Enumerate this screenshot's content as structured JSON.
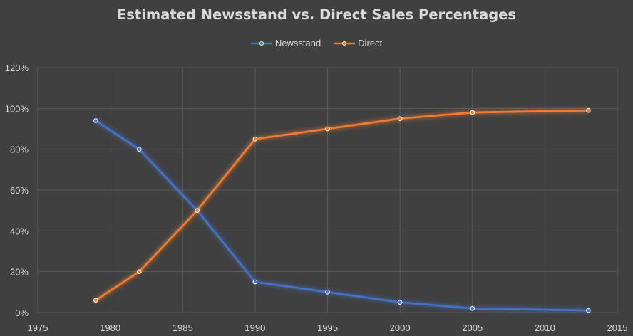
{
  "chart_data": {
    "type": "line",
    "title": "Estimated Newsstand vs. Direct Sales Percentages",
    "xlabel": "",
    "ylabel": "",
    "xlim": [
      1975,
      2015
    ],
    "xticks": [
      1975,
      1980,
      1985,
      1990,
      1995,
      2000,
      2005,
      2010,
      2015
    ],
    "ylim": [
      0,
      1.2
    ],
    "yticks": [
      0,
      0.2,
      0.4,
      0.6,
      0.8,
      1.0,
      1.2
    ],
    "ytick_labels": [
      "0%",
      "20%",
      "40%",
      "60%",
      "80%",
      "100%",
      "120%"
    ],
    "grid": true,
    "legend": "top",
    "series": [
      {
        "name": "Newsstand",
        "color": "#4472c4",
        "x": [
          1979,
          1982,
          1986,
          1990,
          1995,
          2000,
          2005,
          2013
        ],
        "values": [
          0.94,
          0.8,
          0.5,
          0.15,
          0.1,
          0.05,
          0.02,
          0.01
        ]
      },
      {
        "name": "Direct",
        "color": "#ed7d31",
        "x": [
          1979,
          1982,
          1986,
          1990,
          1995,
          2000,
          2005,
          2013
        ],
        "values": [
          0.06,
          0.2,
          0.5,
          0.85,
          0.9,
          0.95,
          0.98,
          0.99
        ]
      }
    ]
  }
}
